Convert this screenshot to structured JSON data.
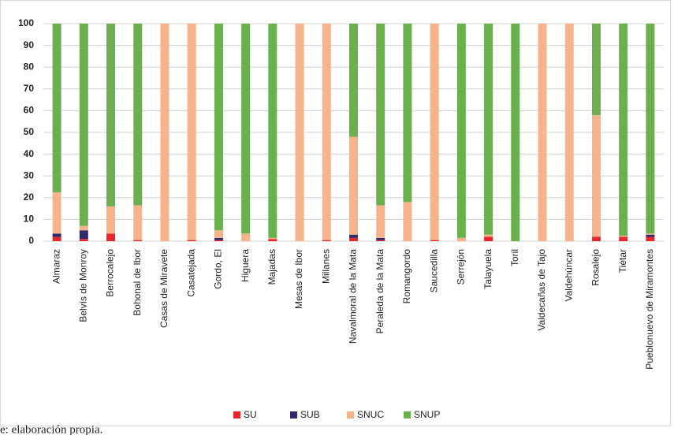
{
  "chart_data": {
    "type": "stacked_bar",
    "categories": [
      "Almaraz",
      "Belvís de Monroy",
      "Berrocalejo",
      "Bohonal de Ibor",
      "Casas de Miravete",
      "Casatejada",
      "Gordo, El",
      "Higuera",
      "Majadas",
      "Mesas de Ibor",
      "Millanes",
      "Navalmoral de la Mata",
      "Peraleda de la Mata",
      "Romangordo",
      "Saucedilla",
      "Serrejón",
      "Talayuela",
      "Toril",
      "Valdecañas de Tajo",
      "Valdehúncar",
      "Rosalejo",
      "Tiétar",
      "Pueblonuevo de Miramontes"
    ],
    "series": [
      {
        "name": "SU",
        "color": "#e8262b",
        "values": [
          2,
          1,
          3.5,
          0.5,
          0,
          0.5,
          0.5,
          0,
          1,
          0,
          0.5,
          1.5,
          0.5,
          0,
          0.5,
          0,
          2,
          0,
          0,
          0,
          2,
          2,
          2
        ]
      },
      {
        "name": "SUB",
        "color": "#2e2a6b",
        "values": [
          1.5,
          4,
          0,
          0,
          0,
          0,
          1,
          0,
          0,
          0,
          0,
          1.5,
          1,
          0,
          0,
          0,
          0,
          0,
          0,
          0,
          0,
          0,
          1
        ]
      },
      {
        "name": "SNUC",
        "color": "#f7b48a",
        "values": [
          19,
          2,
          12.5,
          16,
          100,
          99.5,
          3.5,
          3.5,
          0.5,
          100,
          99.5,
          45,
          15,
          18,
          99.5,
          1.5,
          1,
          0,
          100,
          100,
          56,
          0.5,
          0.5
        ]
      },
      {
        "name": "SNUP",
        "color": "#6ab04c",
        "values": [
          77.5,
          93,
          84,
          83.5,
          0,
          0,
          95,
          96.5,
          98.5,
          0,
          0,
          52,
          83.5,
          82,
          0,
          98.5,
          97,
          100,
          0,
          0,
          42,
          97.5,
          96.5
        ]
      }
    ],
    "ylim": [
      0,
      100
    ],
    "yticks": [
      0,
      10,
      20,
      30,
      40,
      50,
      60,
      70,
      80,
      90,
      100
    ],
    "grid": true,
    "legend": "bottom",
    "source": "e: elaboración propia."
  }
}
